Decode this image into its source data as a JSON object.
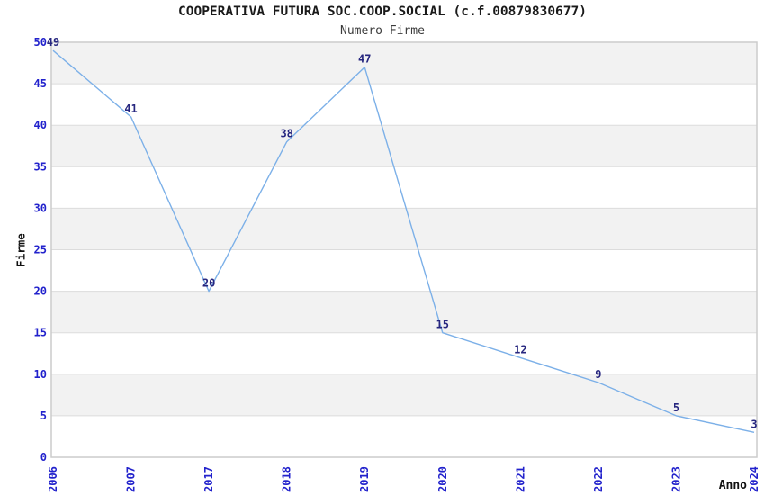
{
  "chart_data": {
    "type": "line",
    "title": "COOPERATIVA FUTURA SOC.COOP.SOCIAL (c.f.00879830677)",
    "subtitle": "Numero Firme",
    "xlabel": "Anno",
    "ylabel": "Firme",
    "categories": [
      "2006",
      "2007",
      "2017",
      "2018",
      "2019",
      "2020",
      "2021",
      "2022",
      "2023",
      "2024"
    ],
    "values": [
      49,
      41,
      20,
      38,
      47,
      15,
      12,
      9,
      5,
      3
    ],
    "data_labels_shown": true,
    "ylim": [
      0,
      50
    ],
    "ytick_step": 5,
    "yticks": [
      0,
      5,
      10,
      15,
      20,
      25,
      30,
      35,
      40,
      45,
      50
    ],
    "grid": "horizontal-bands",
    "legend": "none",
    "colors": {
      "line": "#7cb0e8",
      "tick_label": "#2222cc",
      "data_label": "#26267f",
      "band": "#f2f2f2",
      "gridline": "#dcdcdc",
      "border": "#cccccc",
      "background": "#ffffff"
    }
  }
}
